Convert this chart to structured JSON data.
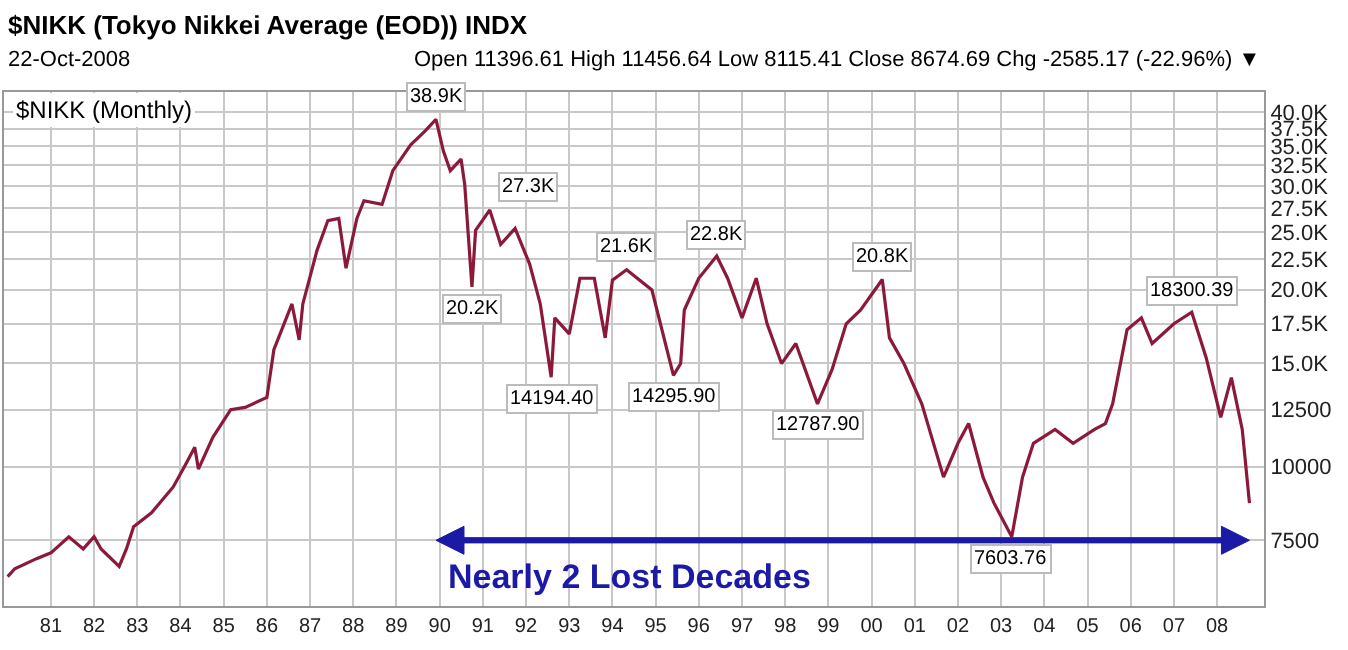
{
  "chart_data": {
    "type": "line",
    "title": "$NIKK (Tokyo Nikkei Average (EOD)) INDX",
    "subtitle": "22-Oct-2008",
    "annotations": [
      "$NIKK (Monthly)",
      "Open 11396.61 High 11456.64 Low 8115.41 Close 8674.69 Chg -2585.17 (-22.96%) ▼",
      "Nearly 2 Lost Decades",
      {
        "text": "38.9K",
        "x": "1989-12",
        "y": 38900
      },
      {
        "text": "27.3K",
        "x": "1991-03",
        "y": 27300
      },
      {
        "text": "20.2K",
        "x": "1990-10",
        "y": 20200
      },
      {
        "text": "14194.40",
        "x": "1992-08",
        "y": 14194.4
      },
      {
        "text": "21.6K",
        "x": "1994-05",
        "y": 21600
      },
      {
        "text": "14295.90",
        "x": "1995-06",
        "y": 14295.9
      },
      {
        "text": "22.8K",
        "x": "1996-06",
        "y": 22800
      },
      {
        "text": "12787.90",
        "x": "1998-10",
        "y": 12787.9
      },
      {
        "text": "20.8K",
        "x": "2000-04",
        "y": 20800
      },
      {
        "text": "7603.76",
        "x": "2003-04",
        "y": 7603.76
      },
      {
        "text": "18300.39",
        "x": "2007-06",
        "y": 18300.39
      }
    ],
    "x": [
      "1980-01",
      "1980-03",
      "1980-09",
      "1981-01",
      "1981-06",
      "1981-10",
      "1982-01",
      "1982-03",
      "1982-08",
      "1982-10",
      "1982-12",
      "1983-05",
      "1983-11",
      "1984-02",
      "1984-05",
      "1984-06",
      "1984-10",
      "1985-03",
      "1985-07",
      "1986-01",
      "1986-03",
      "1986-08",
      "1986-10",
      "1986-11",
      "1987-03",
      "1987-06",
      "1987-09",
      "1987-11",
      "1988-02",
      "1988-04",
      "1988-09",
      "1988-12",
      "1989-05",
      "1989-09",
      "1989-12",
      "1990-02",
      "1990-04",
      "1990-07",
      "1990-08",
      "1990-10",
      "1990-11",
      "1991-03",
      "1991-06",
      "1991-10",
      "1992-02",
      "1992-05",
      "1992-08",
      "1992-09",
      "1993-01",
      "1993-04",
      "1993-08",
      "1993-11",
      "1994-01",
      "1994-05",
      "1994-12",
      "1995-06",
      "1995-08",
      "1995-09",
      "1996-01",
      "1996-06",
      "1996-09",
      "1997-01",
      "1997-05",
      "1997-08",
      "1997-12",
      "1998-04",
      "1998-10",
      "1999-02",
      "1999-06",
      "1999-10",
      "2000-04",
      "2000-06",
      "2000-10",
      "2001-03",
      "2001-09",
      "2002-01",
      "2002-04",
      "2002-08",
      "2002-11",
      "2003-04",
      "2003-07",
      "2003-10",
      "2004-04",
      "2004-09",
      "2005-03",
      "2005-06",
      "2005-08",
      "2005-12",
      "2006-04",
      "2006-07",
      "2007-01",
      "2007-06",
      "2007-10",
      "2008-02",
      "2008-05",
      "2008-08",
      "2008-10"
    ],
    "series": [
      {
        "color": "#8b1a3a",
        "values": [
          6505,
          6710,
          6980,
          7140,
          7603,
          7250,
          7603,
          7250,
          6770,
          7250,
          7910,
          8350,
          9240,
          9980,
          10790,
          9910,
          11220,
          12500,
          12610,
          13110,
          15800,
          18900,
          16420,
          18900,
          23310,
          26190,
          26400,
          21740,
          26400,
          28300,
          27900,
          31830,
          35220,
          37180,
          38900,
          34400,
          31830,
          33310,
          30150,
          20200,
          25200,
          27300,
          23870,
          25390,
          22090,
          18900,
          14194.4,
          17900,
          16810,
          20900,
          20900,
          16550,
          20750,
          21600,
          19960,
          14295.9,
          14970,
          18460,
          20900,
          22800,
          20900,
          17900,
          20900,
          17490,
          14970,
          16190,
          12787.9,
          14620,
          17490,
          18460,
          20800,
          16550,
          14970,
          12787.9,
          9600,
          10960,
          11840,
          9600,
          8680,
          7603.76,
          9600,
          10960,
          11570,
          10960,
          11570,
          11840,
          12790,
          17090,
          17900,
          16190,
          17490,
          18300.39,
          15320,
          12130,
          14170,
          11570,
          8674.69
        ]
      }
    ],
    "xlim": [
      "1979-12",
      "2009-02"
    ],
    "xticks": [
      {
        "value": "1981-01",
        "label": "81"
      },
      {
        "value": "1982-01",
        "label": "82"
      },
      {
        "value": "1983-01",
        "label": "83"
      },
      {
        "value": "1984-01",
        "label": "84"
      },
      {
        "value": "1985-01",
        "label": "85"
      },
      {
        "value": "1986-01",
        "label": "86"
      },
      {
        "value": "1987-01",
        "label": "87"
      },
      {
        "value": "1988-01",
        "label": "88"
      },
      {
        "value": "1989-01",
        "label": "89"
      },
      {
        "value": "1990-01",
        "label": "90"
      },
      {
        "value": "1991-01",
        "label": "91"
      },
      {
        "value": "1992-01",
        "label": "92"
      },
      {
        "value": "1993-01",
        "label": "93"
      },
      {
        "value": "1994-01",
        "label": "94"
      },
      {
        "value": "1995-01",
        "label": "95"
      },
      {
        "value": "1996-01",
        "label": "96"
      },
      {
        "value": "1997-01",
        "label": "97"
      },
      {
        "value": "1998-01",
        "label": "98"
      },
      {
        "value": "1999-01",
        "label": "99"
      },
      {
        "value": "2000-01",
        "label": "00"
      },
      {
        "value": "2001-01",
        "label": "01"
      },
      {
        "value": "2002-01",
        "label": "02"
      },
      {
        "value": "2003-01",
        "label": "03"
      },
      {
        "value": "2004-01",
        "label": "04"
      },
      {
        "value": "2005-01",
        "label": "05"
      },
      {
        "value": "2006-01",
        "label": "06"
      },
      {
        "value": "2007-01",
        "label": "07"
      },
      {
        "value": "2008-01",
        "label": "08"
      }
    ],
    "ylim": [
      5800,
      43300
    ],
    "log": true,
    "yticks": [
      7500,
      10000,
      12500,
      {
        "value": 15000,
        "label": "15.0K"
      },
      {
        "value": 17500,
        "label": "17.5K"
      },
      {
        "value": 20000,
        "label": "20.0K"
      },
      {
        "value": 22500,
        "label": "22.5K"
      },
      {
        "value": 25000,
        "label": "25.0K"
      },
      {
        "value": 27500,
        "label": "27.5K"
      },
      {
        "value": 30000,
        "label": "30.0K"
      },
      {
        "value": 32500,
        "label": "32.5K"
      },
      {
        "value": 35000,
        "label": "35.0K"
      },
      {
        "value": 37500,
        "label": "37.5K"
      },
      {
        "value": 40000,
        "label": "40.0K"
      }
    ],
    "grid": true,
    "marker": "none",
    "line_style": "solid"
  }
}
